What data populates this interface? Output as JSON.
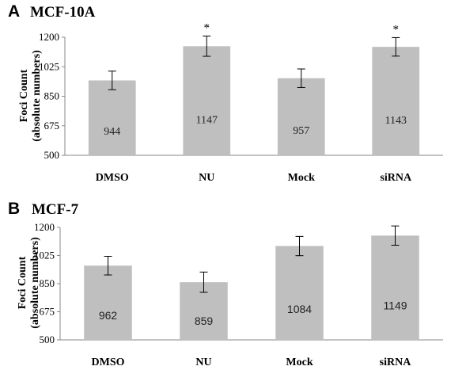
{
  "chart_data": [
    {
      "type": "bar",
      "panel": "A",
      "title": "MCF-10A",
      "ylabel": "Foci Count\n(absolute numbers)",
      "categories": [
        "DMSO",
        "NU",
        "Mock",
        "siRNA"
      ],
      "values": [
        944,
        1147,
        957,
        1143
      ],
      "errors": [
        55,
        60,
        55,
        55
      ],
      "value_labels": [
        "944",
        "1147",
        "957",
        "1143"
      ],
      "annotations": [
        "",
        "*",
        "",
        "*"
      ],
      "ylim": [
        500,
        1200
      ],
      "yticks": [
        "500",
        "675",
        "850",
        "1025",
        "1200"
      ],
      "grid": false,
      "bar_color": "#bfbfbf"
    },
    {
      "type": "bar",
      "panel": "B",
      "title": "MCF-7",
      "ylabel": "Foci Count\n(absolute numbers)",
      "categories": [
        "DMSO",
        "NU",
        "Mock",
        "siRNA"
      ],
      "values": [
        962,
        859,
        1084,
        1149
      ],
      "errors": [
        58,
        63,
        60,
        60
      ],
      "value_labels": [
        "962",
        "859",
        "1084",
        "1149"
      ],
      "annotations": [
        "",
        "",
        "",
        ""
      ],
      "ylim": [
        500,
        1200
      ],
      "yticks": [
        "500",
        "675",
        "850",
        "1025",
        "1200"
      ],
      "grid": false,
      "bar_color": "#bfbfbf"
    }
  ]
}
